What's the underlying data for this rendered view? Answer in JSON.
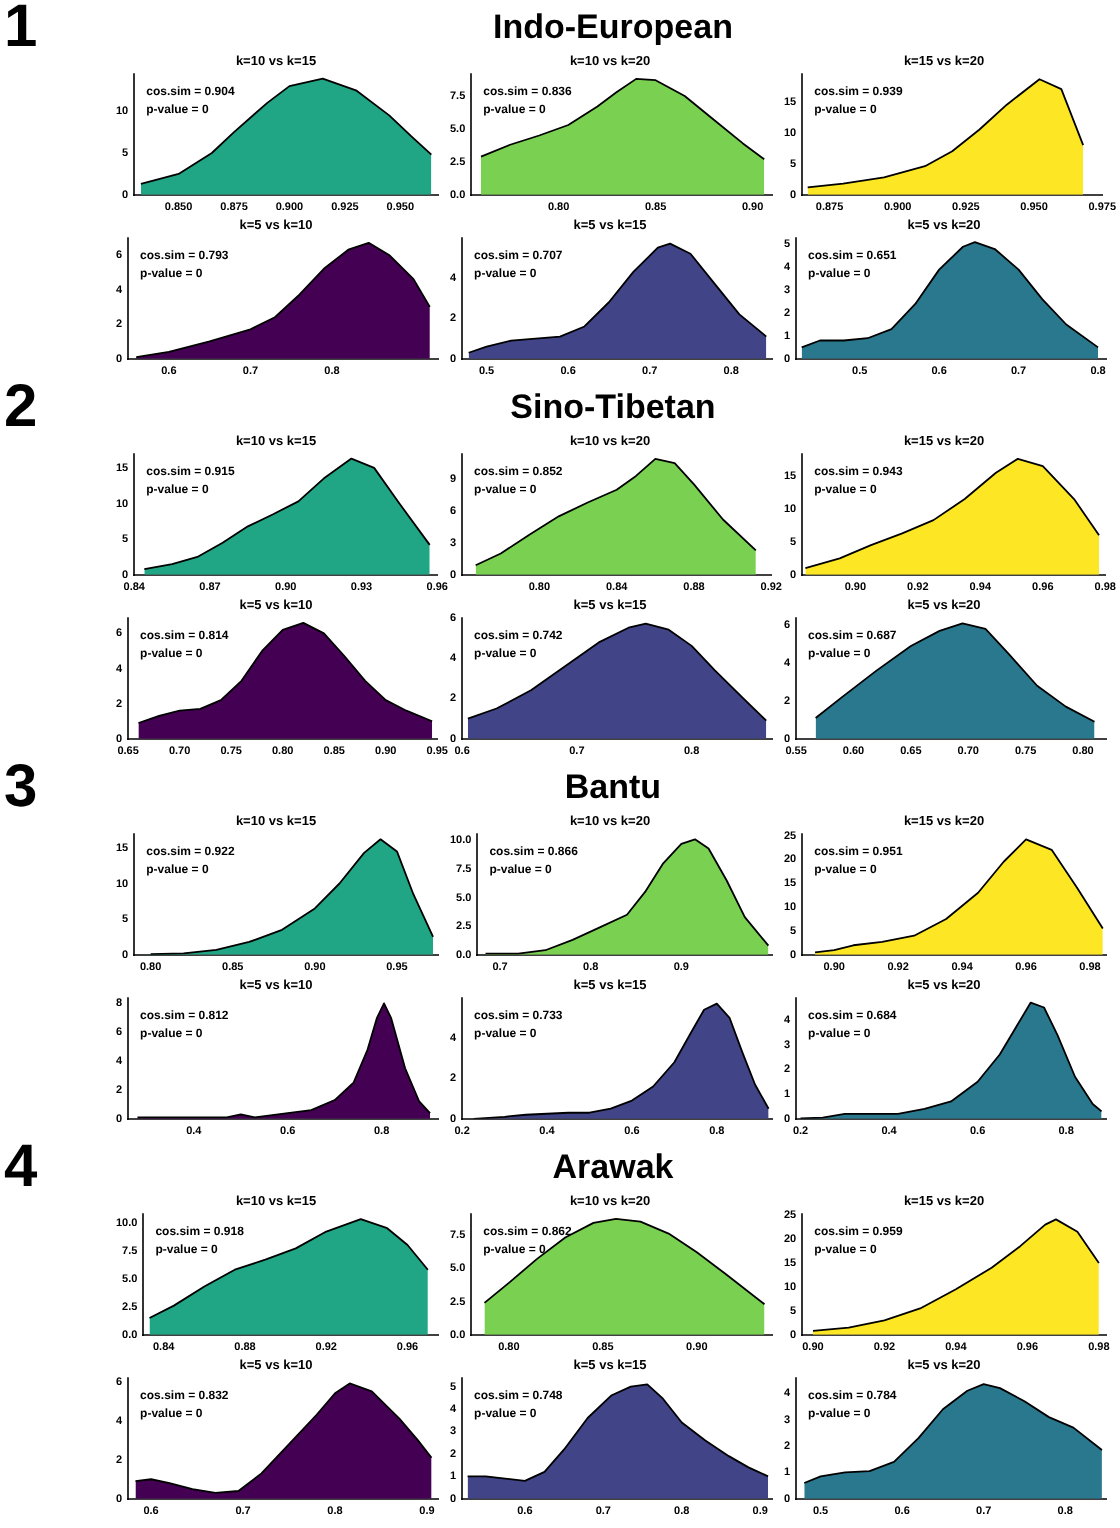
{
  "chart_data": [
    {
      "type": "other",
      "title": "Indo-European",
      "annotations": [
        "1"
      ]
    },
    {
      "type": "area",
      "title": "k=10 vs k=15",
      "color": "#21a685",
      "annotations": [
        "cos.sim = 0.904",
        "p-value = 0"
      ],
      "x": [
        0.833,
        0.85,
        0.865,
        0.875,
        0.89,
        0.9,
        0.915,
        0.93,
        0.945,
        0.955,
        0.964
      ],
      "values": [
        1.3,
        2.5,
        5,
        7.5,
        11,
        13,
        13.9,
        12.5,
        9.5,
        7,
        4.8
      ],
      "xlim": [
        0.83,
        0.967
      ],
      "xticks": [
        {
          "value": 0.85,
          "label": "0.850"
        },
        0.875,
        {
          "value": 0.9,
          "label": "0.900"
        },
        0.925,
        {
          "value": 0.95,
          "label": "0.950"
        }
      ],
      "ylim": [
        0,
        14.5
      ],
      "yticks": [
        0,
        5,
        10
      ]
    },
    {
      "type": "area",
      "title": "k=10 vs k=20",
      "color": "#7ad151",
      "annotations": [
        "cos.sim = 0.836",
        "p-value = 0"
      ],
      "x": [
        0.76,
        0.775,
        0.79,
        0.805,
        0.82,
        0.83,
        0.84,
        0.85,
        0.865,
        0.88,
        0.895,
        0.906
      ],
      "values": [
        2.9,
        3.8,
        4.5,
        5.3,
        6.7,
        7.8,
        8.8,
        8.7,
        7.5,
        5.7,
        3.9,
        2.7
      ],
      "xlim": [
        0.755,
        0.91
      ],
      "xticks": [
        {
          "value": 0.8,
          "label": "0.80"
        },
        0.85,
        {
          "value": 0.9,
          "label": "0.90"
        }
      ],
      "ylim": [
        0,
        9.2
      ],
      "yticks": [
        {
          "value": 0,
          "label": "0.0"
        },
        2.5,
        {
          "value": 5,
          "label": "5.0"
        },
        7.5
      ]
    },
    {
      "type": "area",
      "title": "k=15 vs k=20",
      "color": "#fde725",
      "annotations": [
        "cos.sim = 0.939",
        "p-value = 0"
      ],
      "x": [
        0.867,
        0.88,
        0.895,
        0.91,
        0.92,
        0.93,
        0.94,
        0.952,
        0.96,
        0.968
      ],
      "values": [
        1.2,
        1.8,
        2.8,
        4.6,
        7,
        10.5,
        14.5,
        18.6,
        17,
        8
      ],
      "xlim": [
        0.865,
        0.975
      ],
      "xticks": [
        0.875,
        {
          "value": 0.9,
          "label": "0.900"
        },
        0.925,
        {
          "value": 0.95,
          "label": "0.950"
        },
        0.975
      ],
      "ylim": [
        0,
        19.5
      ],
      "yticks": [
        0,
        5,
        10,
        15
      ]
    },
    {
      "type": "area",
      "title": "k=5 vs k=10",
      "color": "#440154",
      "annotations": [
        "cos.sim = 0.793",
        "p-value = 0"
      ],
      "x": [
        0.56,
        0.6,
        0.65,
        0.7,
        0.73,
        0.76,
        0.79,
        0.82,
        0.845,
        0.87,
        0.9,
        0.92
      ],
      "values": [
        0.1,
        0.4,
        1,
        1.7,
        2.4,
        3.7,
        5.2,
        6.3,
        6.7,
        6,
        4.6,
        3
      ],
      "xlim": [
        0.55,
        0.93
      ],
      "xticks": [
        0.6,
        0.7,
        0.8
      ],
      "ylim": [
        0,
        7
      ],
      "yticks": [
        0,
        2,
        4,
        6
      ]
    },
    {
      "type": "area",
      "title": "k=5 vs k=15",
      "color": "#414487",
      "annotations": [
        "cos.sim = 0.707",
        "p-value = 0"
      ],
      "x": [
        0.478,
        0.5,
        0.53,
        0.56,
        0.59,
        0.62,
        0.65,
        0.68,
        0.71,
        0.725,
        0.75,
        0.78,
        0.81,
        0.843
      ],
      "values": [
        0.3,
        0.6,
        0.9,
        1,
        1.1,
        1.6,
        2.8,
        4.3,
        5.5,
        5.7,
        5.2,
        3.7,
        2.2,
        1.1
      ],
      "xlim": [
        0.47,
        0.85
      ],
      "xticks": [
        0.5,
        0.6,
        0.7,
        0.8
      ],
      "ylim": [
        0,
        6
      ],
      "yticks": [
        0,
        2,
        4
      ]
    },
    {
      "type": "area",
      "title": "k=5 vs k=20",
      "color": "#2a788e",
      "annotations": [
        "cos.sim = 0.651",
        "p-value = 0"
      ],
      "x": [
        0.427,
        0.45,
        0.48,
        0.51,
        0.54,
        0.57,
        0.6,
        0.63,
        0.645,
        0.67,
        0.7,
        0.73,
        0.76,
        0.8
      ],
      "values": [
        0.5,
        0.8,
        0.8,
        0.9,
        1.3,
        2.4,
        3.9,
        4.9,
        5.1,
        4.8,
        3.9,
        2.6,
        1.5,
        0.5
      ],
      "xlim": [
        0.42,
        0.81
      ],
      "xticks": [
        0.5,
        0.6,
        0.7,
        0.8
      ],
      "ylim": [
        0,
        5.3
      ],
      "yticks": [
        0,
        1,
        2,
        3,
        4,
        5
      ]
    },
    {
      "type": "other",
      "title": "Sino-Tibetan",
      "annotations": [
        "2"
      ]
    },
    {
      "type": "area",
      "title": "k=10 vs k=15",
      "color": "#21a685",
      "annotations": [
        "cos.sim = 0.915",
        "p-value = 0"
      ],
      "x": [
        0.844,
        0.855,
        0.865,
        0.875,
        0.885,
        0.895,
        0.905,
        0.915,
        0.926,
        0.935,
        0.945,
        0.957
      ],
      "values": [
        0.8,
        1.5,
        2.5,
        4.5,
        6.8,
        8.5,
        10.3,
        13.5,
        16.3,
        15,
        10,
        4.2
      ],
      "xlim": [
        0.84,
        0.96
      ],
      "xticks": [
        0.84,
        0.87,
        {
          "value": 0.9,
          "label": "0.90"
        },
        0.93,
        0.96
      ],
      "ylim": [
        0,
        17
      ],
      "yticks": [
        0,
        5,
        10,
        15
      ]
    },
    {
      "type": "area",
      "title": "k=10 vs k=20",
      "color": "#7ad151",
      "annotations": [
        "cos.sim = 0.852",
        "p-value = 0"
      ],
      "x": [
        0.767,
        0.78,
        0.795,
        0.81,
        0.825,
        0.84,
        0.85,
        0.86,
        0.87,
        0.88,
        0.895,
        0.912
      ],
      "values": [
        0.9,
        2,
        3.8,
        5.5,
        6.8,
        8,
        9.3,
        10.9,
        10.5,
        8.5,
        5.2,
        2.3
      ],
      "xlim": [
        0.76,
        0.92
      ],
      "xticks": [
        {
          "value": 0.8,
          "label": "0.80"
        },
        0.84,
        0.88,
        0.92
      ],
      "ylim": [
        0,
        11.4
      ],
      "yticks": [
        0,
        3,
        6,
        9
      ]
    },
    {
      "type": "area",
      "title": "k=15 vs k=20",
      "color": "#fde725",
      "annotations": [
        "cos.sim = 0.943",
        "p-value = 0"
      ],
      "x": [
        0.884,
        0.895,
        0.905,
        0.915,
        0.925,
        0.935,
        0.945,
        0.952,
        0.96,
        0.97,
        0.978
      ],
      "values": [
        1,
        2.5,
        4.5,
        6.3,
        8.3,
        11.5,
        15.5,
        17.6,
        16.5,
        11.5,
        6
      ],
      "xlim": [
        0.883,
        0.98
      ],
      "xticks": [
        {
          "value": 0.9,
          "label": "0.90"
        },
        0.92,
        0.94,
        0.96,
        0.98
      ],
      "ylim": [
        0,
        18.4
      ],
      "yticks": [
        0,
        5,
        10,
        15
      ]
    },
    {
      "type": "area",
      "title": "k=5 vs k=10",
      "color": "#440154",
      "annotations": [
        "cos.sim = 0.814",
        "p-value = 0"
      ],
      "x": [
        0.66,
        0.68,
        0.7,
        0.72,
        0.74,
        0.76,
        0.78,
        0.8,
        0.82,
        0.84,
        0.86,
        0.88,
        0.9,
        0.92,
        0.945
      ],
      "values": [
        0.9,
        1.3,
        1.6,
        1.7,
        2.2,
        3.3,
        5,
        6.2,
        6.6,
        6,
        4.7,
        3.3,
        2.2,
        1.6,
        1
      ],
      "xlim": [
        0.65,
        0.95
      ],
      "xticks": [
        0.65,
        {
          "value": 0.7,
          "label": "0.70"
        },
        0.75,
        {
          "value": 0.8,
          "label": "0.80"
        },
        0.85,
        {
          "value": 0.9,
          "label": "0.90"
        },
        0.95
      ],
      "ylim": [
        0,
        6.9
      ],
      "yticks": [
        0,
        2,
        4,
        6
      ]
    },
    {
      "type": "area",
      "title": "k=5 vs k=15",
      "color": "#414487",
      "annotations": [
        "cos.sim = 0.742",
        "p-value = 0"
      ],
      "x": [
        0.605,
        0.63,
        0.66,
        0.69,
        0.72,
        0.745,
        0.76,
        0.78,
        0.8,
        0.82,
        0.845,
        0.865
      ],
      "values": [
        1,
        1.5,
        2.4,
        3.6,
        4.8,
        5.5,
        5.7,
        5.4,
        4.6,
        3.4,
        2,
        0.9
      ],
      "xlim": [
        0.6,
        0.87
      ],
      "xticks": [
        0.6,
        0.7,
        0.8
      ],
      "ylim": [
        0,
        6
      ],
      "yticks": [
        0,
        2,
        4,
        6
      ]
    },
    {
      "type": "area",
      "title": "k=5 vs k=20",
      "color": "#2a788e",
      "annotations": [
        "cos.sim = 0.687",
        "p-value = 0"
      ],
      "x": [
        0.567,
        0.59,
        0.62,
        0.65,
        0.675,
        0.695,
        0.715,
        0.735,
        0.76,
        0.785,
        0.81
      ],
      "values": [
        1.1,
        2.2,
        3.6,
        4.9,
        5.7,
        6.1,
        5.8,
        4.5,
        2.8,
        1.7,
        0.9
      ],
      "xlim": [
        0.55,
        0.82
      ],
      "xticks": [
        0.55,
        {
          "value": 0.6,
          "label": "0.60"
        },
        0.65,
        {
          "value": 0.7,
          "label": "0.70"
        },
        0.75,
        {
          "value": 0.8,
          "label": "0.80"
        }
      ],
      "ylim": [
        0,
        6.4
      ],
      "yticks": [
        0,
        2,
        4,
        6
      ]
    },
    {
      "type": "other",
      "title": "Bantu",
      "annotations": [
        "3"
      ]
    },
    {
      "type": "area",
      "title": "k=10 vs k=15",
      "color": "#21a685",
      "annotations": [
        "cos.sim = 0.922",
        "p-value = 0"
      ],
      "x": [
        0.8,
        0.82,
        0.84,
        0.86,
        0.88,
        0.9,
        0.915,
        0.93,
        0.94,
        0.95,
        0.96,
        0.972
      ],
      "values": [
        0.1,
        0.2,
        0.7,
        1.8,
        3.5,
        6.5,
        10,
        14.3,
        16.2,
        14.5,
        8.5,
        2.5
      ],
      "xlim": [
        0.79,
        0.975
      ],
      "xticks": [
        {
          "value": 0.8,
          "label": "0.80"
        },
        0.85,
        {
          "value": 0.9,
          "label": "0.90"
        },
        0.95
      ],
      "ylim": [
        0,
        17
      ],
      "yticks": [
        0,
        5,
        10,
        15
      ]
    },
    {
      "type": "area",
      "title": "k=10 vs k=20",
      "color": "#7ad151",
      "annotations": [
        "cos.sim = 0.866",
        "p-value = 0"
      ],
      "x": [
        0.684,
        0.72,
        0.75,
        0.78,
        0.81,
        0.84,
        0.86,
        0.88,
        0.9,
        0.915,
        0.93,
        0.95,
        0.97,
        0.996
      ],
      "values": [
        0.1,
        0.1,
        0.4,
        1.3,
        2.4,
        3.5,
        5.5,
        8,
        9.7,
        10.1,
        9.3,
        6.5,
        3.3,
        0.8
      ],
      "xlim": [
        0.675,
        1.0
      ],
      "xticks": [
        0.7,
        0.8,
        0.9
      ],
      "ylim": [
        0,
        10.6
      ],
      "yticks": [
        {
          "value": 0,
          "label": "0.0"
        },
        2.5,
        {
          "value": 5,
          "label": "5.0"
        },
        7.5,
        {
          "value": 10,
          "label": "10.0"
        }
      ]
    },
    {
      "type": "area",
      "title": "k=15 vs k=20",
      "color": "#fde725",
      "annotations": [
        "cos.sim = 0.951",
        "p-value = 0"
      ],
      "x": [
        0.894,
        0.9,
        0.906,
        0.915,
        0.925,
        0.935,
        0.945,
        0.953,
        0.96,
        0.968,
        0.976,
        0.984
      ],
      "values": [
        0.5,
        1,
        2,
        2.7,
        4,
        7.5,
        13,
        19.5,
        24.2,
        22,
        14,
        5.5
      ],
      "xlim": [
        0.89,
        0.985
      ],
      "xticks": [
        {
          "value": 0.9,
          "label": "0.90"
        },
        0.92,
        0.94,
        0.96,
        0.98
      ],
      "ylim": [
        0,
        25.4
      ],
      "yticks": [
        0,
        5,
        10,
        15,
        20,
        25
      ]
    },
    {
      "type": "area",
      "title": "k=5 vs k=10",
      "color": "#440154",
      "annotations": [
        "cos.sim = 0.812",
        "p-value = 0"
      ],
      "x": [
        0.28,
        0.4,
        0.47,
        0.5,
        0.53,
        0.6,
        0.65,
        0.7,
        0.74,
        0.77,
        0.79,
        0.805,
        0.82,
        0.85,
        0.88,
        0.903
      ],
      "values": [
        0.1,
        0.1,
        0.1,
        0.3,
        0.1,
        0.4,
        0.6,
        1.3,
        2.5,
        4.8,
        7,
        8,
        7,
        3.5,
        1.2,
        0.4
      ],
      "xlim": [
        0.26,
        0.92
      ],
      "xticks": [
        0.4,
        0.6,
        0.8
      ],
      "ylim": [
        0,
        8.4
      ],
      "yticks": [
        0,
        2,
        4,
        6,
        8
      ]
    },
    {
      "type": "area",
      "title": "k=5 vs k=15",
      "color": "#414487",
      "annotations": [
        "cos.sim = 0.733",
        "p-value = 0"
      ],
      "x": [
        0.227,
        0.3,
        0.35,
        0.45,
        0.5,
        0.55,
        0.6,
        0.65,
        0.7,
        0.74,
        0.77,
        0.8,
        0.83,
        0.86,
        0.89,
        0.922
      ],
      "values": [
        0,
        0.1,
        0.2,
        0.3,
        0.3,
        0.5,
        0.9,
        1.6,
        2.8,
        4.3,
        5.4,
        5.7,
        5,
        3.3,
        1.7,
        0.5
      ],
      "xlim": [
        0.2,
        0.93
      ],
      "xticks": [
        0.2,
        0.4,
        0.6,
        0.8
      ],
      "ylim": [
        0,
        6
      ],
      "yticks": [
        0,
        2,
        4
      ]
    },
    {
      "type": "area",
      "title": "k=5 vs k=20",
      "color": "#2a788e",
      "annotations": [
        "cos.sim = 0.684",
        "p-value = 0"
      ],
      "x": [
        0.2,
        0.25,
        0.3,
        0.35,
        0.42,
        0.48,
        0.54,
        0.6,
        0.65,
        0.69,
        0.72,
        0.75,
        0.78,
        0.82,
        0.86,
        0.88
      ],
      "values": [
        0.02,
        0.05,
        0.2,
        0.2,
        0.2,
        0.4,
        0.7,
        1.5,
        2.6,
        3.8,
        4.7,
        4.5,
        3.4,
        1.7,
        0.6,
        0.3
      ],
      "xlim": [
        0.19,
        0.89
      ],
      "xticks": [
        0.2,
        0.4,
        0.6,
        0.8
      ],
      "ylim": [
        0,
        4.9
      ],
      "yticks": [
        0,
        1,
        2,
        3,
        4
      ]
    },
    {
      "type": "other",
      "title": "Arawak",
      "annotations": [
        "4"
      ]
    },
    {
      "type": "area",
      "title": "k=10 vs k=15",
      "color": "#21a685",
      "annotations": [
        "cos.sim = 0.918",
        "p-value = 0"
      ],
      "x": [
        0.833,
        0.845,
        0.86,
        0.875,
        0.89,
        0.905,
        0.92,
        0.937,
        0.95,
        0.96,
        0.97
      ],
      "values": [
        1.5,
        2.6,
        4.3,
        5.8,
        6.7,
        7.7,
        9.2,
        10.3,
        9.5,
        8,
        5.8
      ],
      "xlim": [
        0.83,
        0.975
      ],
      "xticks": [
        0.84,
        0.88,
        0.92,
        0.96
      ],
      "ylim": [
        0,
        10.8
      ],
      "yticks": [
        {
          "value": 0,
          "label": "0.0"
        },
        2.5,
        {
          "value": 5,
          "label": "5.0"
        },
        7.5,
        {
          "value": 10,
          "label": "10.0"
        }
      ]
    },
    {
      "type": "area",
      "title": "k=10 vs k=20",
      "color": "#7ad151",
      "annotations": [
        "cos.sim = 0.862",
        "p-value = 0"
      ],
      "x": [
        0.787,
        0.8,
        0.815,
        0.83,
        0.845,
        0.857,
        0.87,
        0.885,
        0.9,
        0.915,
        0.936
      ],
      "values": [
        2.4,
        3.9,
        5.7,
        7.3,
        8.4,
        8.7,
        8.5,
        7.6,
        6.2,
        4.6,
        2.3
      ],
      "xlim": [
        0.78,
        0.94
      ],
      "xticks": [
        {
          "value": 0.8,
          "label": "0.80"
        },
        0.85,
        {
          "value": 0.9,
          "label": "0.90"
        }
      ],
      "ylim": [
        0,
        9.1
      ],
      "yticks": [
        {
          "value": 0,
          "label": "0.0"
        },
        2.5,
        {
          "value": 5,
          "label": "5.0"
        },
        7.5
      ]
    },
    {
      "type": "area",
      "title": "k=15 vs k=20",
      "color": "#fde725",
      "annotations": [
        "cos.sim = 0.959",
        "p-value = 0"
      ],
      "x": [
        0.9,
        0.91,
        0.92,
        0.93,
        0.94,
        0.95,
        0.958,
        0.965,
        0.968,
        0.974,
        0.98
      ],
      "values": [
        0.8,
        1.5,
        3,
        5.5,
        9.5,
        14,
        18.5,
        23,
        24.1,
        21.5,
        15
      ],
      "xlim": [
        0.897,
        0.982
      ],
      "xticks": [
        {
          "value": 0.9,
          "label": "0.90"
        },
        0.92,
        0.94,
        0.96,
        0.98
      ],
      "ylim": [
        0,
        25.3
      ],
      "yticks": [
        0,
        5,
        10,
        15,
        20,
        25
      ]
    },
    {
      "type": "area",
      "title": "k=5 vs k=10",
      "color": "#440154",
      "annotations": [
        "cos.sim = 0.832",
        "p-value = 0"
      ],
      "x": [
        0.583,
        0.6,
        0.62,
        0.645,
        0.67,
        0.695,
        0.72,
        0.75,
        0.78,
        0.8,
        0.816,
        0.84,
        0.87,
        0.89,
        0.905
      ],
      "values": [
        0.9,
        1,
        0.8,
        0.5,
        0.3,
        0.4,
        1.3,
        2.8,
        4.3,
        5.4,
        5.9,
        5.5,
        4.1,
        3,
        2.1
      ],
      "xlim": [
        0.575,
        0.912
      ],
      "xticks": [
        0.6,
        0.7,
        0.8,
        0.9
      ],
      "ylim": [
        0,
        6.2
      ],
      "yticks": [
        0,
        2,
        4,
        6
      ]
    },
    {
      "type": "area",
      "title": "k=5 vs k=15",
      "color": "#414487",
      "annotations": [
        "cos.sim = 0.748",
        "p-value = 0"
      ],
      "x": [
        0.527,
        0.55,
        0.575,
        0.6,
        0.625,
        0.65,
        0.68,
        0.71,
        0.735,
        0.756,
        0.775,
        0.8,
        0.83,
        0.86,
        0.885,
        0.91
      ],
      "values": [
        1,
        1,
        0.9,
        0.8,
        1.2,
        2.2,
        3.6,
        4.6,
        5,
        5.1,
        4.5,
        3.4,
        2.6,
        1.9,
        1.4,
        1
      ],
      "xlim": [
        0.52,
        0.915
      ],
      "xticks": [
        0.6,
        0.7,
        0.8,
        0.9
      ],
      "ylim": [
        0,
        5.4
      ],
      "yticks": [
        0,
        1,
        2,
        3,
        4,
        5
      ]
    },
    {
      "type": "area",
      "title": "k=5 vs k=20",
      "color": "#2a788e",
      "annotations": [
        "cos.sim = 0.784",
        "p-value = 0"
      ],
      "x": [
        0.48,
        0.5,
        0.53,
        0.56,
        0.59,
        0.62,
        0.65,
        0.68,
        0.7,
        0.72,
        0.75,
        0.78,
        0.81,
        0.845
      ],
      "values": [
        0.6,
        0.85,
        1,
        1.05,
        1.4,
        2.3,
        3.4,
        4.1,
        4.35,
        4.2,
        3.7,
        3.1,
        2.7,
        1.85
      ],
      "xlim": [
        0.47,
        0.85
      ],
      "xticks": [
        0.5,
        0.6,
        0.7,
        0.8
      ],
      "ylim": [
        0,
        4.6
      ],
      "yticks": [
        0,
        1,
        2,
        3,
        4
      ]
    }
  ]
}
